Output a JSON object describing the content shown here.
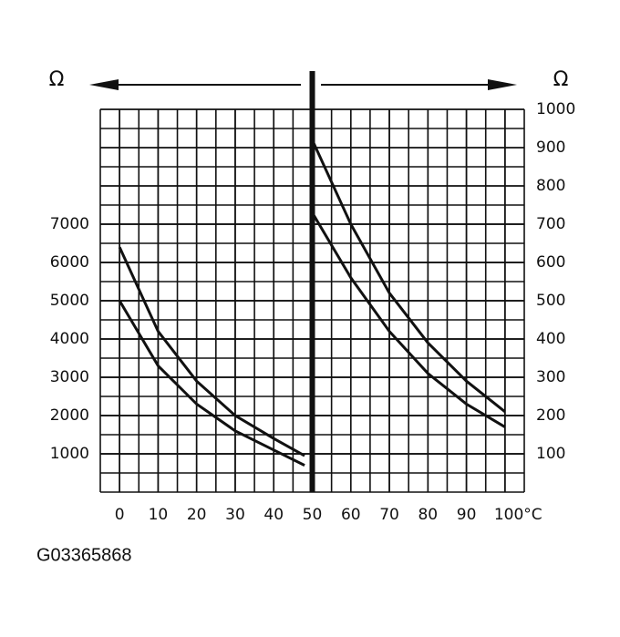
{
  "chart_data": {
    "type": "line",
    "y_label": "Ω",
    "y2_label": "Ω",
    "xlim": [
      -5,
      105
    ],
    "xticks": [
      0,
      10,
      20,
      30,
      40,
      50,
      60,
      70,
      80,
      90,
      {
        "value": 100,
        "label": "100°C"
      }
    ],
    "ylim": [
      0,
      10000
    ],
    "yticks": [
      1000,
      2000,
      3000,
      4000,
      5000,
      6000,
      7000
    ],
    "y2lim": [
      0,
      1000
    ],
    "y2ticks": [
      100,
      200,
      300,
      400,
      500,
      600,
      700,
      800,
      900,
      1000
    ],
    "grid": true,
    "series": [
      {
        "color": "#111",
        "axis": "y",
        "x": [
          0,
          10,
          20,
          30,
          40,
          48
        ],
        "values": [
          6400,
          4200,
          2900,
          2000,
          1400,
          950
        ]
      },
      {
        "color": "#111",
        "axis": "y",
        "x": [
          0,
          10,
          20,
          30,
          40,
          48
        ],
        "values": [
          5000,
          3300,
          2300,
          1600,
          1100,
          700
        ]
      },
      {
        "color": "#111",
        "axis": "y2",
        "x": [
          50,
          60,
          70,
          80,
          90,
          100
        ],
        "values": [
          920,
          700,
          520,
          390,
          290,
          210
        ]
      },
      {
        "color": "#111",
        "axis": "y2",
        "x": [
          50,
          60,
          70,
          80,
          90,
          100
        ],
        "values": [
          730,
          560,
          420,
          310,
          230,
          170
        ]
      }
    ]
  },
  "figure_id": "G03365868"
}
